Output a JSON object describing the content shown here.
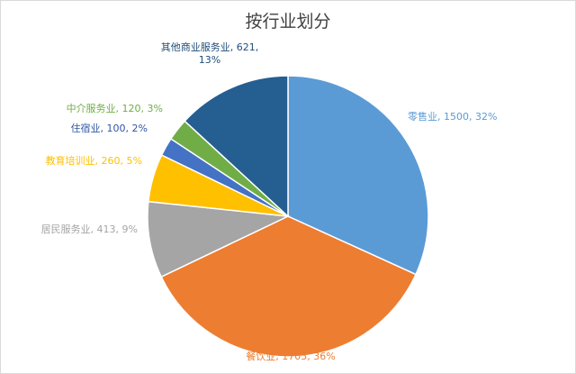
{
  "chart_data": {
    "type": "pie",
    "title": "按行业划分",
    "slices": [
      {
        "label": "零售业",
        "value": 1500,
        "percent": "32%",
        "color": "#5b9bd5"
      },
      {
        "label": "餐饮业",
        "value": 1705,
        "percent": "36%",
        "color": "#ed7d31"
      },
      {
        "label": "居民服务业",
        "value": 413,
        "percent": "9%",
        "color": "#a5a5a5"
      },
      {
        "label": "教育培训业",
        "value": 260,
        "percent": "5%",
        "color": "#ffc000"
      },
      {
        "label": "住宿业",
        "value": 100,
        "percent": "2%",
        "color": "#4472c4"
      },
      {
        "label": "中介服务业",
        "value": 120,
        "percent": "3%",
        "color": "#70ad47"
      },
      {
        "label": "其他商业服务业",
        "value": 621,
        "percent": "13%",
        "color": "#255e91"
      }
    ],
    "data_labels": [
      {
        "lines": [
          "零售业, 1500, 32%"
        ]
      },
      {
        "lines": [
          "餐饮业, 1705, 36%"
        ]
      },
      {
        "lines": [
          "居民服务业, 413, 9%"
        ]
      },
      {
        "lines": [
          "教育培训业, 260, 5%"
        ]
      },
      {
        "lines": [
          "住宿业, 100, 2%"
        ]
      },
      {
        "lines": [
          "中介服务业, 120, 3%"
        ]
      },
      {
        "lines": [
          "其他商业服务业, 621,",
          "13%"
        ]
      }
    ]
  }
}
